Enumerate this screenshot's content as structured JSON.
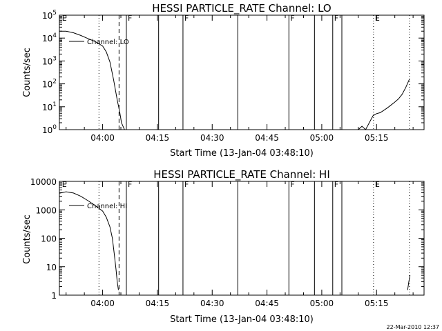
{
  "chart_data": [
    {
      "type": "line",
      "title": "HESSI PARTICLE_RATE Channel: LO",
      "xlabel": "Start Time (13-Jan-04 03:48:10)",
      "ylabel": "Counts/sec",
      "yscale": "log",
      "ylim": [
        1,
        100000
      ],
      "xlim": [
        "03:48:10",
        "05:28:00"
      ],
      "x_ticks": [
        "04:00",
        "04:15",
        "04:30",
        "04:45",
        "05:00",
        "05:15"
      ],
      "y_ticks": [
        {
          "value": 1,
          "label": "10^0"
        },
        {
          "value": 10,
          "label": "10^1"
        },
        {
          "value": 100,
          "label": "10^2"
        },
        {
          "value": 1000,
          "label": "10^3"
        },
        {
          "value": 10000,
          "label": "10^4"
        },
        {
          "value": 100000,
          "label": "10^5"
        }
      ],
      "legend": {
        "label": "Channel: LO",
        "placement": "top-left"
      },
      "series": [
        {
          "name": "Channel: LO",
          "segments": [
            [
              [
                "03:48:10",
                20000
              ],
              [
                "03:50:00",
                20000
              ],
              [
                "03:52:00",
                17000
              ],
              [
                "03:54:00",
                13000
              ],
              [
                "03:56:00",
                9500
              ],
              [
                "03:58:00",
                7000
              ],
              [
                "04:00:00",
                4500
              ],
              [
                "04:01:00",
                2500
              ],
              [
                "04:02:00",
                900
              ],
              [
                "04:03:00",
                150
              ],
              [
                "04:04:00",
                20
              ],
              [
                "04:04:40",
                6
              ],
              [
                "04:05:10",
                2
              ],
              [
                "04:05:30",
                1.5
              ],
              [
                "04:06:00",
                1
              ]
            ],
            [
              [
                "05:10:00",
                1
              ],
              [
                "05:11:00",
                1.4
              ],
              [
                "05:12:00",
                1
              ],
              [
                "05:13:00",
                2
              ],
              [
                "05:14:00",
                4
              ],
              [
                "05:15:00",
                5
              ],
              [
                "05:16:00",
                5.5
              ],
              [
                "05:17:00",
                7
              ],
              [
                "05:18:00",
                9
              ],
              [
                "05:19:00",
                12
              ],
              [
                "05:20:00",
                16
              ],
              [
                "05:21:00",
                22
              ],
              [
                "05:22:00",
                35
              ],
              [
                "05:23:00",
                70
              ],
              [
                "05:24:00",
                160
              ]
            ]
          ]
        }
      ],
      "markers": [
        {
          "x": "03:48:30",
          "label": "E",
          "style": "none"
        },
        {
          "x": "03:59:00",
          "label": "",
          "style": "dotted"
        },
        {
          "x": "04:04:30",
          "label": "",
          "style": "dashed"
        },
        {
          "x": "04:06:30",
          "label": "F",
          "style": "solid"
        },
        {
          "x": "04:15:20",
          "label": "",
          "style": "solid"
        },
        {
          "x": "04:22:00",
          "label": "F",
          "style": "solid"
        },
        {
          "x": "04:37:00",
          "label": "",
          "style": "solid"
        },
        {
          "x": "04:51:00",
          "label": "F",
          "style": "solid"
        },
        {
          "x": "04:58:00",
          "label": "",
          "style": "solid"
        },
        {
          "x": "05:03:00",
          "label": "F",
          "style": "solid"
        },
        {
          "x": "05:05:30",
          "label": "",
          "style": "solid"
        },
        {
          "x": "05:14:10",
          "label": "E",
          "style": "dotted"
        },
        {
          "x": "05:24:00",
          "label": "",
          "style": "dotted"
        }
      ]
    },
    {
      "type": "line",
      "title": "HESSI PARTICLE_RATE Channel: HI",
      "xlabel": "Start Time (13-Jan-04 03:48:10)",
      "ylabel": "Counts/sec",
      "yscale": "log",
      "ylim": [
        1,
        10000
      ],
      "xlim": [
        "03:48:10",
        "05:28:00"
      ],
      "x_ticks": [
        "04:00",
        "04:15",
        "04:30",
        "04:45",
        "05:00",
        "05:15"
      ],
      "y_ticks": [
        {
          "value": 1,
          "label": "1"
        },
        {
          "value": 10,
          "label": "10"
        },
        {
          "value": 100,
          "label": "100"
        },
        {
          "value": 1000,
          "label": "1000"
        },
        {
          "value": 10000,
          "label": "10000"
        }
      ],
      "legend": {
        "label": "Channel: HI",
        "placement": "top-left"
      },
      "series": [
        {
          "name": "Channel: HI",
          "segments": [
            [
              [
                "03:48:10",
                3800
              ],
              [
                "03:50:00",
                4300
              ],
              [
                "03:52:00",
                3900
              ],
              [
                "03:54:00",
                3000
              ],
              [
                "03:56:00",
                2100
              ],
              [
                "03:58:00",
                1400
              ],
              [
                "04:00:00",
                900
              ],
              [
                "04:01:00",
                550
              ],
              [
                "04:02:00",
                250
              ],
              [
                "04:02:40",
                100
              ],
              [
                "04:03:10",
                30
              ],
              [
                "04:03:40",
                8
              ],
              [
                "04:04:00",
                3
              ],
              [
                "04:04:20",
                1.5
              ]
            ],
            [
              [
                "05:23:30",
                1.5
              ],
              [
                "05:23:50",
                3
              ],
              [
                "05:24:10",
                5
              ]
            ]
          ]
        }
      ],
      "markers": [
        {
          "x": "03:48:30",
          "label": "E",
          "style": "none"
        },
        {
          "x": "03:59:00",
          "label": "",
          "style": "dotted"
        },
        {
          "x": "04:04:30",
          "label": "",
          "style": "dashed"
        },
        {
          "x": "04:06:30",
          "label": "F",
          "style": "solid"
        },
        {
          "x": "04:15:20",
          "label": "",
          "style": "solid"
        },
        {
          "x": "04:22:00",
          "label": "F",
          "style": "solid"
        },
        {
          "x": "04:37:00",
          "label": "",
          "style": "solid"
        },
        {
          "x": "04:51:00",
          "label": "F",
          "style": "solid"
        },
        {
          "x": "04:58:00",
          "label": "",
          "style": "solid"
        },
        {
          "x": "05:03:00",
          "label": "F",
          "style": "solid"
        },
        {
          "x": "05:05:30",
          "label": "",
          "style": "solid"
        },
        {
          "x": "05:14:10",
          "label": "E",
          "style": "dotted"
        },
        {
          "x": "05:24:00",
          "label": "",
          "style": "dotted"
        }
      ]
    }
  ],
  "footer": {
    "timestamp": "22-Mar-2010 12:37"
  }
}
